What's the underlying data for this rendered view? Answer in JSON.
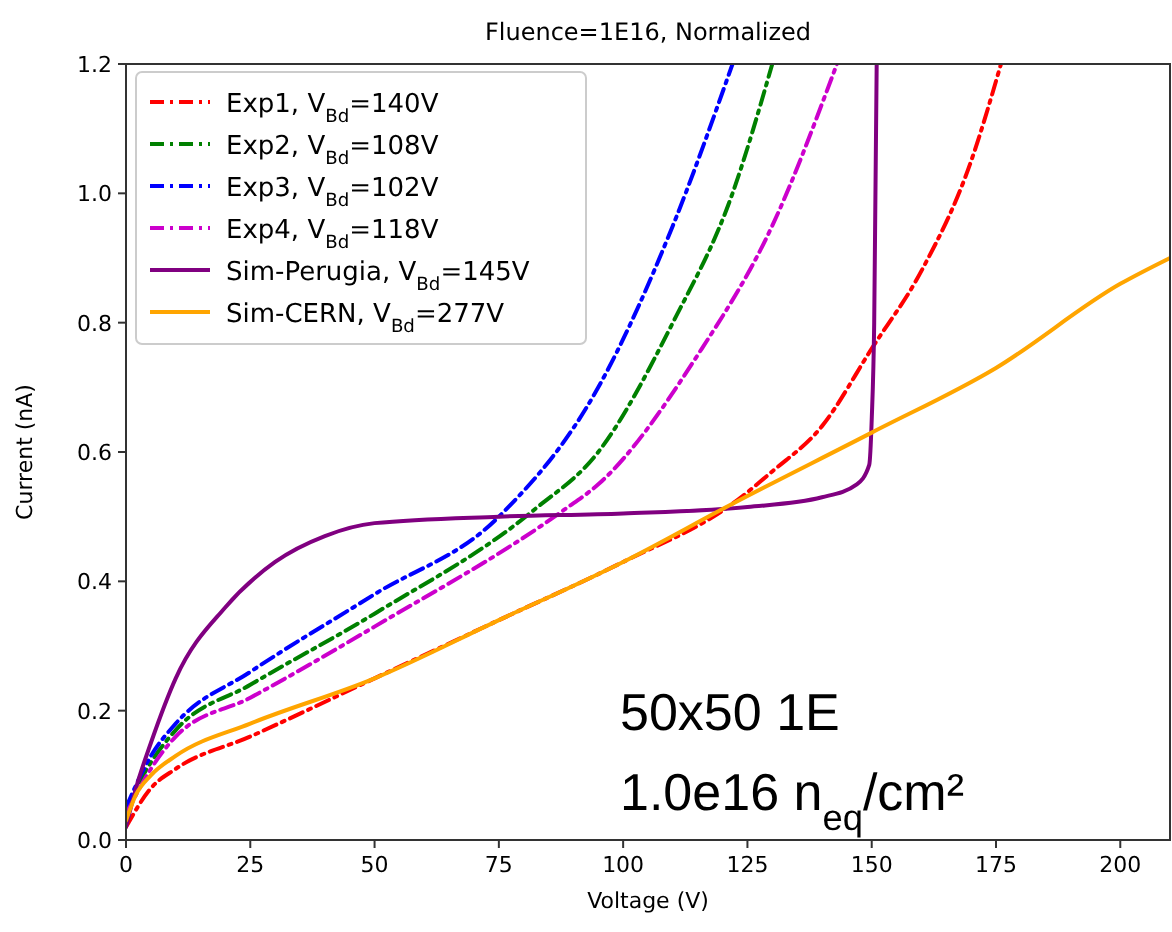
{
  "chart_data": {
    "type": "line",
    "title": "Fluence=1E16, Normalized",
    "xlabel": "Voltage (V)",
    "ylabel": "Current (nA)",
    "xlim": [
      0,
      210
    ],
    "ylim": [
      0,
      1.2
    ],
    "xticks": [
      0,
      25,
      50,
      75,
      100,
      125,
      150,
      175,
      200
    ],
    "yticks": [
      {
        "value": 0,
        "label": "0.0"
      },
      {
        "value": 0.2,
        "label": "0.2"
      },
      {
        "value": 0.4,
        "label": "0.4"
      },
      {
        "value": 0.6,
        "label": "0.6"
      },
      {
        "value": 0.8,
        "label": "0.8"
      },
      {
        "value": 1,
        "label": "1.0"
      },
      {
        "value": 1.2,
        "label": "1.2"
      }
    ],
    "grid": false,
    "legend": "top left",
    "marker": "none",
    "annotations": [
      "50x50 1E",
      "1.0e16 n$_{eq}$/cm²"
    ],
    "series": [
      {
        "name": "Exp1, V$_{Bd}$=140V",
        "color": "#ff0000",
        "line_style": "dashdot",
        "x": [
          0,
          5,
          10,
          25,
          50,
          75,
          100,
          122,
          130,
          140,
          150,
          160,
          170,
          176
        ],
        "values": [
          0.02,
          0.08,
          0.11,
          0.16,
          0.25,
          0.34,
          0.43,
          0.52,
          0.57,
          0.64,
          0.76,
          0.88,
          1.05,
          1.2
        ]
      },
      {
        "name": "Exp2, V$_{Bd}$=108V",
        "color": "#008000",
        "line_style": "dashdot",
        "x": [
          0,
          5,
          10,
          25,
          50,
          82,
          95,
          110,
          122,
          130
        ],
        "values": [
          0.05,
          0.12,
          0.17,
          0.24,
          0.35,
          0.51,
          0.6,
          0.8,
          1.0,
          1.2
        ]
      },
      {
        "name": "Exp3, V$_{Bd}$=102V",
        "color": "#0000ff",
        "line_style": "dashdot",
        "x": [
          0,
          5,
          10,
          25,
          50,
          75,
          95,
          110,
          122
        ],
        "values": [
          0.05,
          0.13,
          0.18,
          0.26,
          0.38,
          0.5,
          0.7,
          0.95,
          1.2
        ]
      },
      {
        "name": "Exp4, V$_{Bd}$=118V",
        "color": "#cc00cc",
        "line_style": "dashdot",
        "x": [
          0,
          5,
          10,
          25,
          50,
          88,
          95,
          115,
          130,
          143
        ],
        "values": [
          0.04,
          0.11,
          0.16,
          0.22,
          0.33,
          0.51,
          0.55,
          0.75,
          0.95,
          1.2
        ]
      },
      {
        "name": "Sim-Perugia, V$_{Bd}$=145V",
        "color": "#800080",
        "line_style": "solid",
        "x": [
          0,
          2,
          5,
          10,
          20,
          30,
          40,
          50,
          75,
          100,
          125,
          140,
          147,
          149.5,
          150,
          150.5,
          151
        ],
        "values": [
          0.02,
          0.08,
          0.15,
          0.25,
          0.36,
          0.43,
          0.47,
          0.49,
          0.5,
          0.505,
          0.515,
          0.53,
          0.55,
          0.58,
          0.65,
          0.8,
          1.2
        ]
      },
      {
        "name": "Sim-CERN, V$_{Bd}$=277V",
        "color": "#ffa500",
        "line_style": "solid",
        "x": [
          0,
          2,
          5,
          10,
          25,
          50,
          75,
          100,
          122,
          150,
          175,
          200,
          210
        ],
        "values": [
          0.03,
          0.07,
          0.1,
          0.13,
          0.18,
          0.25,
          0.34,
          0.43,
          0.52,
          0.63,
          0.73,
          0.86,
          0.9
        ]
      }
    ]
  }
}
